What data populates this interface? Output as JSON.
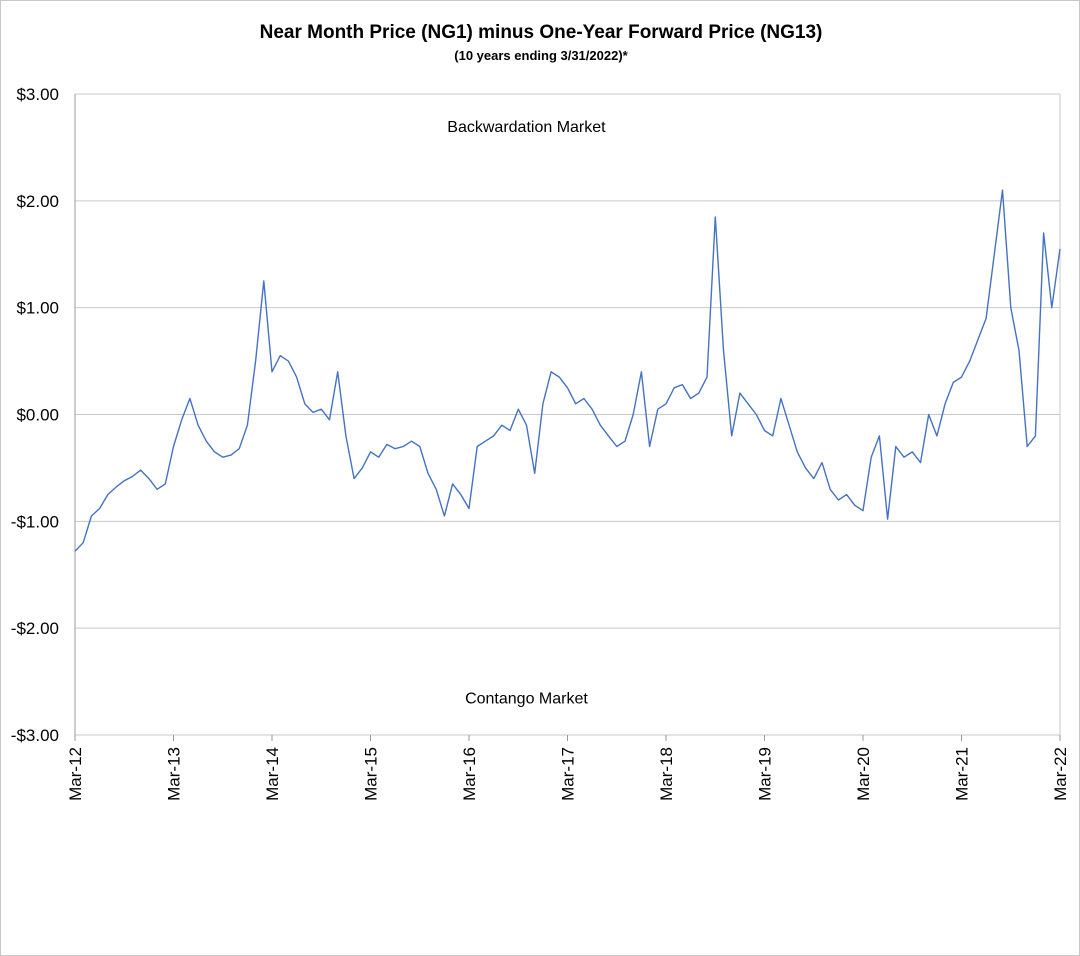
{
  "chart_data": {
    "type": "line",
    "title": "Near Month Price (NG1) minus One-Year Forward Price (NG13)",
    "subtitle": "(10 years ending 3/31/2022)*",
    "xlabel": "",
    "ylabel": "",
    "ylim": [
      -3,
      3
    ],
    "y_ticks": [
      {
        "value": 3,
        "label": "$3.00"
      },
      {
        "value": 2,
        "label": "$2.00"
      },
      {
        "value": 1,
        "label": "$1.00"
      },
      {
        "value": 0,
        "label": "$0.00"
      },
      {
        "value": -1,
        "label": "-$1.00"
      },
      {
        "value": -2,
        "label": "-$2.00"
      },
      {
        "value": -3,
        "label": "-$3.00"
      }
    ],
    "xlim": [
      "2012-03",
      "2022-03"
    ],
    "x_ticks": [
      {
        "date": "2012-03",
        "label": "Mar-12"
      },
      {
        "date": "2013-03",
        "label": "Mar-13"
      },
      {
        "date": "2014-03",
        "label": "Mar-14"
      },
      {
        "date": "2015-03",
        "label": "Mar-15"
      },
      {
        "date": "2016-03",
        "label": "Mar-16"
      },
      {
        "date": "2017-03",
        "label": "Mar-17"
      },
      {
        "date": "2018-03",
        "label": "Mar-18"
      },
      {
        "date": "2019-03",
        "label": "Mar-19"
      },
      {
        "date": "2020-03",
        "label": "Mar-20"
      },
      {
        "date": "2021-03",
        "label": "Mar-21"
      },
      {
        "date": "2022-03",
        "label": "Mar-22"
      }
    ],
    "grid": true,
    "line_color": "#4472C4",
    "annotations": [
      {
        "text": "Backwardation Market",
        "date": "2016-10",
        "value": 2.7
      },
      {
        "text": "Contango Market",
        "date": "2016-10",
        "value": -2.65
      }
    ],
    "series": [
      {
        "name": "",
        "points": [
          [
            "2012-03",
            -1.28
          ],
          [
            "2012-04",
            -1.2
          ],
          [
            "2012-05",
            -0.95
          ],
          [
            "2012-06",
            -0.88
          ],
          [
            "2012-07",
            -0.75
          ],
          [
            "2012-08",
            -0.68
          ],
          [
            "2012-09",
            -0.62
          ],
          [
            "2012-10",
            -0.58
          ],
          [
            "2012-11",
            -0.52
          ],
          [
            "2012-12",
            -0.6
          ],
          [
            "2013-01",
            -0.7
          ],
          [
            "2013-02",
            -0.65
          ],
          [
            "2013-03",
            -0.3
          ],
          [
            "2013-04",
            -0.05
          ],
          [
            "2013-05",
            0.15
          ],
          [
            "2013-06",
            -0.1
          ],
          [
            "2013-07",
            -0.25
          ],
          [
            "2013-08",
            -0.35
          ],
          [
            "2013-09",
            -0.4
          ],
          [
            "2013-10",
            -0.38
          ],
          [
            "2013-11",
            -0.32
          ],
          [
            "2013-12",
            -0.1
          ],
          [
            "2014-01",
            0.5
          ],
          [
            "2014-02",
            1.25
          ],
          [
            "2014-03",
            0.4
          ],
          [
            "2014-04",
            0.55
          ],
          [
            "2014-05",
            0.5
          ],
          [
            "2014-06",
            0.35
          ],
          [
            "2014-07",
            0.1
          ],
          [
            "2014-08",
            0.02
          ],
          [
            "2014-09",
            0.05
          ],
          [
            "2014-10",
            -0.05
          ],
          [
            "2014-11",
            0.4
          ],
          [
            "2014-12",
            -0.2
          ],
          [
            "2015-01",
            -0.6
          ],
          [
            "2015-02",
            -0.5
          ],
          [
            "2015-03",
            -0.35
          ],
          [
            "2015-04",
            -0.4
          ],
          [
            "2015-05",
            -0.28
          ],
          [
            "2015-06",
            -0.32
          ],
          [
            "2015-07",
            -0.3
          ],
          [
            "2015-08",
            -0.25
          ],
          [
            "2015-09",
            -0.3
          ],
          [
            "2015-10",
            -0.55
          ],
          [
            "2015-11",
            -0.7
          ],
          [
            "2015-12",
            -0.95
          ],
          [
            "2016-01",
            -0.65
          ],
          [
            "2016-02",
            -0.75
          ],
          [
            "2016-03",
            -0.88
          ],
          [
            "2016-04",
            -0.3
          ],
          [
            "2016-05",
            -0.25
          ],
          [
            "2016-06",
            -0.2
          ],
          [
            "2016-07",
            -0.1
          ],
          [
            "2016-08",
            -0.15
          ],
          [
            "2016-09",
            0.05
          ],
          [
            "2016-10",
            -0.1
          ],
          [
            "2016-11",
            -0.55
          ],
          [
            "2016-12",
            0.1
          ],
          [
            "2017-01",
            0.4
          ],
          [
            "2017-02",
            0.35
          ],
          [
            "2017-03",
            0.25
          ],
          [
            "2017-04",
            0.1
          ],
          [
            "2017-05",
            0.15
          ],
          [
            "2017-06",
            0.05
          ],
          [
            "2017-07",
            -0.1
          ],
          [
            "2017-08",
            -0.2
          ],
          [
            "2017-09",
            -0.3
          ],
          [
            "2017-10",
            -0.25
          ],
          [
            "2017-11",
            0.0
          ],
          [
            "2017-12",
            0.4
          ],
          [
            "2018-01",
            -0.3
          ],
          [
            "2018-02",
            0.05
          ],
          [
            "2018-03",
            0.1
          ],
          [
            "2018-04",
            0.25
          ],
          [
            "2018-05",
            0.28
          ],
          [
            "2018-06",
            0.15
          ],
          [
            "2018-07",
            0.2
          ],
          [
            "2018-08",
            0.35
          ],
          [
            "2018-09",
            1.85
          ],
          [
            "2018-10",
            0.6
          ],
          [
            "2018-11",
            -0.2
          ],
          [
            "2018-12",
            0.2
          ],
          [
            "2019-01",
            0.1
          ],
          [
            "2019-02",
            0.0
          ],
          [
            "2019-03",
            -0.15
          ],
          [
            "2019-04",
            -0.2
          ],
          [
            "2019-05",
            0.15
          ],
          [
            "2019-06",
            -0.1
          ],
          [
            "2019-07",
            -0.35
          ],
          [
            "2019-08",
            -0.5
          ],
          [
            "2019-09",
            -0.6
          ],
          [
            "2019-10",
            -0.45
          ],
          [
            "2019-11",
            -0.7
          ],
          [
            "2019-12",
            -0.8
          ],
          [
            "2020-01",
            -0.75
          ],
          [
            "2020-02",
            -0.85
          ],
          [
            "2020-03",
            -0.9
          ],
          [
            "2020-04",
            -0.4
          ],
          [
            "2020-05",
            -0.2
          ],
          [
            "2020-06",
            -0.98
          ],
          [
            "2020-07",
            -0.3
          ],
          [
            "2020-08",
            -0.4
          ],
          [
            "2020-09",
            -0.35
          ],
          [
            "2020-10",
            -0.45
          ],
          [
            "2020-11",
            0.0
          ],
          [
            "2020-12",
            -0.2
          ],
          [
            "2021-01",
            0.1
          ],
          [
            "2021-02",
            0.3
          ],
          [
            "2021-03",
            0.35
          ],
          [
            "2021-04",
            0.5
          ],
          [
            "2021-05",
            0.7
          ],
          [
            "2021-06",
            0.9
          ],
          [
            "2021-07",
            1.5
          ],
          [
            "2021-08",
            2.1
          ],
          [
            "2021-09",
            1.0
          ],
          [
            "2021-10",
            0.6
          ],
          [
            "2021-11",
            -0.3
          ],
          [
            "2021-12",
            -0.2
          ],
          [
            "2022-01",
            1.7
          ],
          [
            "2022-02",
            1.0
          ],
          [
            "2022-03",
            1.55
          ]
        ]
      }
    ]
  }
}
